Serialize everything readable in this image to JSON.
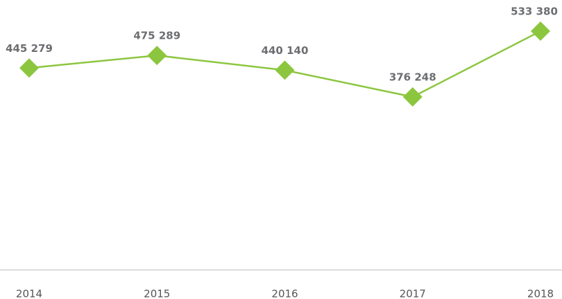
{
  "chart_data": {
    "type": "line",
    "categories": [
      "2014",
      "2015",
      "2016",
      "2017",
      "2018"
    ],
    "series": [
      {
        "color": "#8cc63f",
        "values": [
          445279,
          475289,
          440140,
          376248,
          533380
        ],
        "value_labels": [
          "445 279",
          "475 289",
          "440 140",
          "376 248",
          "533 380"
        ]
      }
    ]
  }
}
